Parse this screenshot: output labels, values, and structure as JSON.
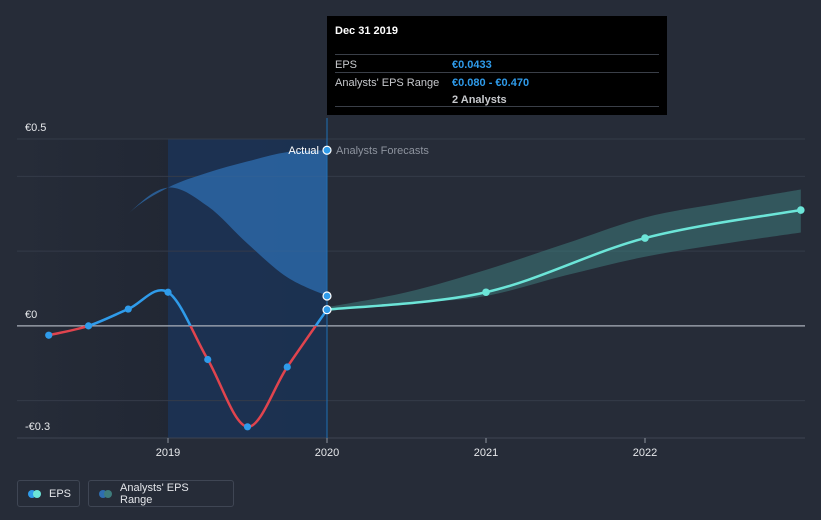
{
  "chart_data": {
    "type": "line",
    "y_ticks": [
      {
        "label": "€0.5",
        "value": 0.5
      },
      {
        "label": "€0",
        "value": 0
      },
      {
        "label": "-€0.3",
        "value": -0.3
      }
    ],
    "x_ticks": [
      {
        "label": "2019",
        "value": 2019.0
      },
      {
        "label": "2020",
        "value": 2020.0
      },
      {
        "label": "2021",
        "value": 2021.0
      },
      {
        "label": "2022",
        "value": 2022.0
      }
    ],
    "divider_x": 2020.0,
    "actual_label": "Actual",
    "forecast_label": "Analysts Forecasts",
    "eps_actual": [
      {
        "x": 2018.25,
        "y": -0.025
      },
      {
        "x": 2018.5,
        "y": 0.0
      },
      {
        "x": 2018.75,
        "y": 0.045
      },
      {
        "x": 2019.0,
        "y": 0.09
      },
      {
        "x": 2019.25,
        "y": -0.09
      },
      {
        "x": 2019.5,
        "y": -0.27
      },
      {
        "x": 2019.75,
        "y": -0.11
      },
      {
        "x": 2020.0,
        "y": 0.0433
      }
    ],
    "eps_forecast": [
      {
        "x": 2020.0,
        "y": 0.0433
      },
      {
        "x": 2021.0,
        "y": 0.09
      },
      {
        "x": 2022.0,
        "y": 0.235
      },
      {
        "x": 2022.98,
        "y": 0.31
      }
    ],
    "forecast_range": [
      {
        "x": 2020.0,
        "low": 0.045,
        "high": 0.05
      },
      {
        "x": 2020.5,
        "low": 0.06,
        "high": 0.09
      },
      {
        "x": 2021.0,
        "low": 0.08,
        "high": 0.15
      },
      {
        "x": 2021.5,
        "low": 0.135,
        "high": 0.22
      },
      {
        "x": 2022.0,
        "low": 0.185,
        "high": 0.29
      },
      {
        "x": 2022.5,
        "low": 0.22,
        "high": 0.33
      },
      {
        "x": 2022.98,
        "low": 0.25,
        "high": 0.365
      }
    ],
    "past_range": [
      {
        "x": 2018.25,
        "low": 0.0,
        "high": 0.0
      },
      {
        "x": 2018.5,
        "low": 0.17,
        "high": 0.17
      },
      {
        "x": 2018.75,
        "low": 0.3,
        "high": 0.3
      },
      {
        "x": 2019.0,
        "low": 0.37,
        "high": 0.37
      },
      {
        "x": 2019.25,
        "low": 0.32,
        "high": 0.41
      },
      {
        "x": 2019.5,
        "low": 0.22,
        "high": 0.44
      },
      {
        "x": 2019.75,
        "low": 0.13,
        "high": 0.465
      },
      {
        "x": 2020.0,
        "low": 0.08,
        "high": 0.47
      }
    ],
    "highlight_range": {
      "low": 0.08,
      "high": 0.47
    },
    "colors": {
      "eps_positive": "#2f9bea",
      "eps_negative": "#e0444e",
      "forecast": "#6ce5d8",
      "forecast_band": "#3e7c7c",
      "past_band": "#2e6db0"
    }
  },
  "tooltip": {
    "date": "Dec 31 2019",
    "rows": [
      {
        "key": "EPS",
        "value": "€0.0433"
      },
      {
        "key": "Analysts' EPS Range",
        "value": "€0.080 - €0.470"
      },
      {
        "key": "",
        "value": "2 Analysts"
      }
    ]
  },
  "legend": {
    "eps_label": "EPS",
    "range_label": "Analysts' EPS Range",
    "eps_colors": [
      "#2f9bea",
      "#6ce5d8"
    ],
    "range_colors": [
      "#2e6db0",
      "#3e7c7c"
    ]
  }
}
